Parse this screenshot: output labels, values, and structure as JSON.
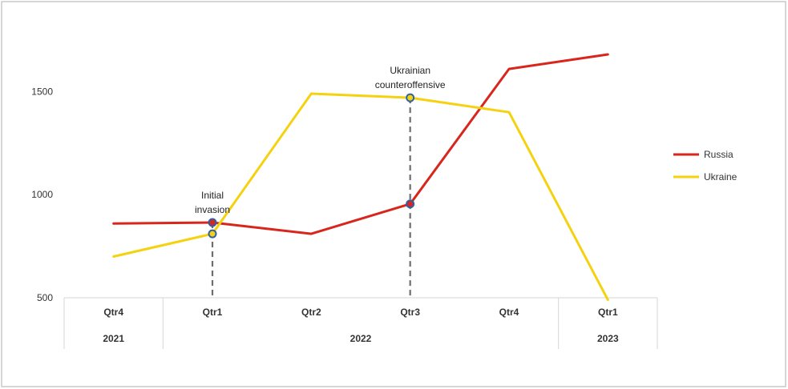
{
  "chart_data": {
    "type": "line",
    "title": "",
    "xlabel": "",
    "ylabel": "",
    "ylim": [
      500,
      1750
    ],
    "yticks": [
      500,
      1000,
      1500
    ],
    "grid": false,
    "legend_position": "right",
    "categories": [
      {
        "quarter": "Qtr4",
        "year": "2021"
      },
      {
        "quarter": "Qtr1",
        "year": "2022"
      },
      {
        "quarter": "Qtr2",
        "year": "2022"
      },
      {
        "quarter": "Qtr3",
        "year": "2022"
      },
      {
        "quarter": "Qtr4",
        "year": "2022"
      },
      {
        "quarter": "Qtr1",
        "year": "2023"
      }
    ],
    "year_groups": [
      {
        "label": "2021",
        "count": 1
      },
      {
        "label": "2022",
        "count": 4
      },
      {
        "label": "2023",
        "count": 1
      }
    ],
    "series": [
      {
        "name": "Russia",
        "color": "#d9261c",
        "values": [
          860,
          865,
          810,
          955,
          1610,
          1680
        ]
      },
      {
        "name": "Ukraine",
        "color": "#f5d20f",
        "values": [
          700,
          810,
          1490,
          1470,
          1400,
          490
        ]
      }
    ],
    "annotations": [
      {
        "lines": [
          "Initial",
          "invasion"
        ],
        "category_index": 1,
        "marker_color": "#2f5fa8"
      },
      {
        "lines": [
          "Ukrainian",
          "counteroffensive"
        ],
        "category_index": 3,
        "marker_color": "#2f5fa8"
      }
    ]
  }
}
